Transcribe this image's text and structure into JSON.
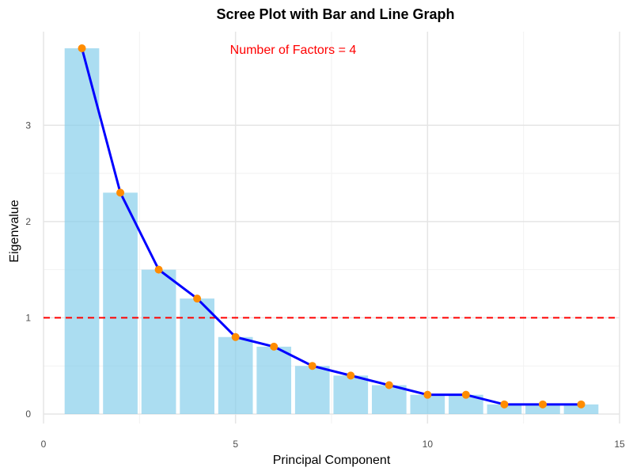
{
  "chart_data": {
    "type": "bar",
    "title": "Scree Plot with Bar and Line Graph",
    "xlabel": "Principal Component",
    "ylabel": "Eigenvalue",
    "xlim": [
      0,
      15
    ],
    "ylim": [
      0,
      3.8
    ],
    "x_ticks": [
      0,
      5,
      10,
      15
    ],
    "y_ticks": [
      0,
      1,
      2,
      3
    ],
    "x_tick_labels": [
      "0",
      "5",
      "10",
      "15"
    ],
    "y_tick_labels": [
      "0",
      "1",
      "2",
      "3"
    ],
    "grid": true,
    "legend": "none",
    "bars": {
      "x": [
        1,
        2,
        3,
        4,
        5,
        6,
        7,
        8,
        9,
        10,
        11,
        12,
        13,
        14
      ],
      "values": [
        3.8,
        2.3,
        1.5,
        1.2,
        0.8,
        0.7,
        0.5,
        0.4,
        0.3,
        0.2,
        0.2,
        0.1,
        0.1,
        0.1
      ],
      "color": "#87CEEB"
    },
    "line": {
      "x": [
        1,
        2,
        3,
        4,
        5,
        6,
        7,
        8,
        9,
        10,
        11,
        12,
        13,
        14
      ],
      "values": [
        3.8,
        2.3,
        1.5,
        1.2,
        0.8,
        0.7,
        0.5,
        0.4,
        0.3,
        0.2,
        0.2,
        0.1,
        0.1,
        0.1
      ],
      "line_color": "#0000FF",
      "point_color": "#FF8C00"
    },
    "reference_line": {
      "y": 1,
      "color": "#FF0000",
      "style": "dashed"
    },
    "annotation": {
      "text": "Number of Factors = 4",
      "x": 6.5,
      "y": 3.8,
      "color": "#FF0000"
    }
  }
}
